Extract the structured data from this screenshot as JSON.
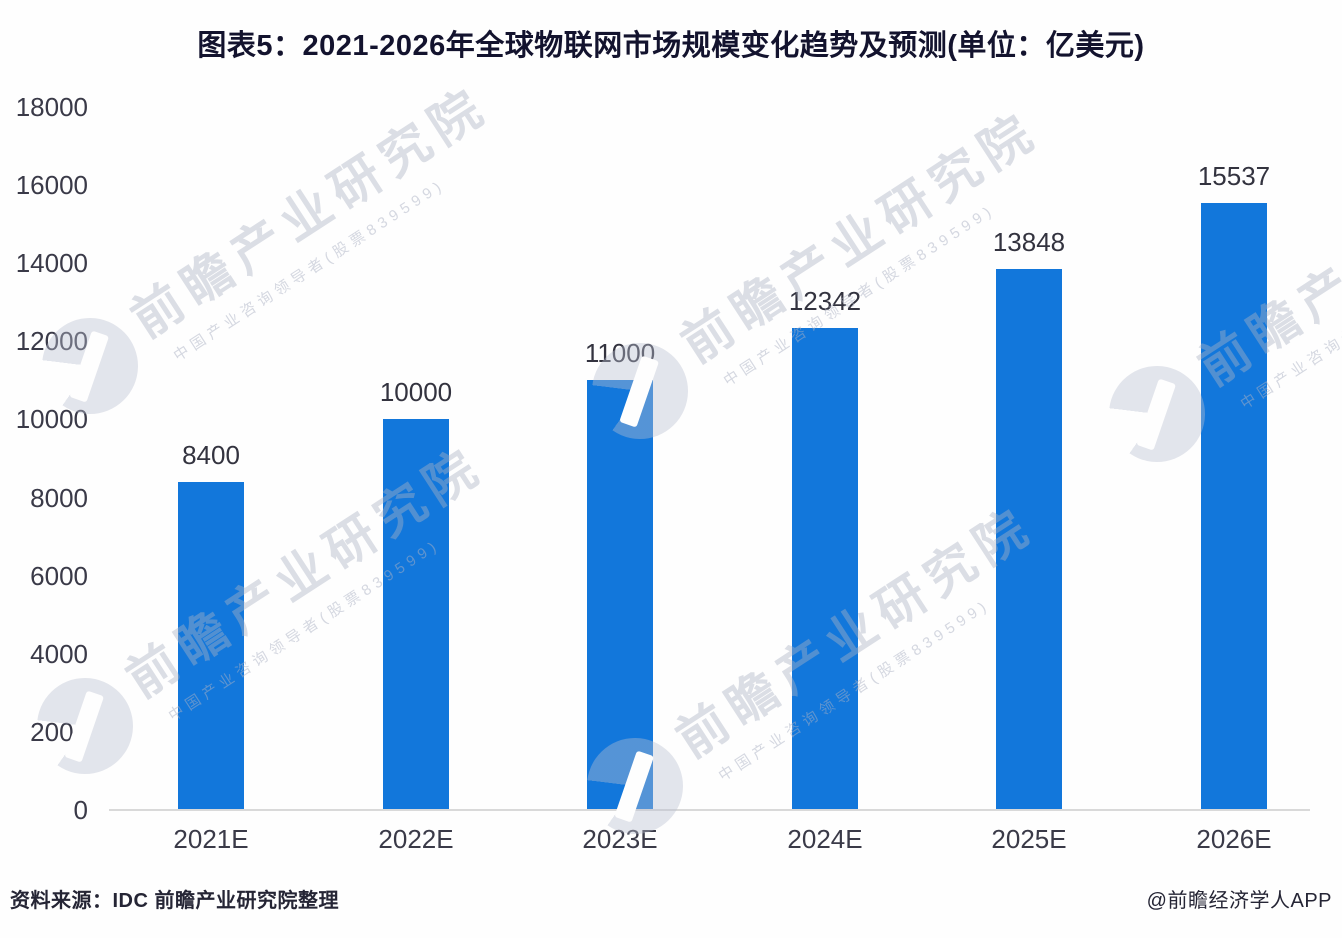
{
  "title": "图表5：2021-2026年全球物联网市场规模变化趋势及预测(单位：亿美元)",
  "chart_data": {
    "type": "bar",
    "title": "图表5：2021-2026年全球物联网市场规模变化趋势及预测(单位：亿美元)",
    "categories": [
      "2021E",
      "2022E",
      "2023E",
      "2024E",
      "2025E",
      "2026E"
    ],
    "values": [
      8400,
      10000,
      11000,
      12342,
      13848,
      15537
    ],
    "xlabel": "",
    "ylabel": "",
    "ylim": [
      0,
      18000
    ],
    "yticks": [
      0,
      2000,
      4000,
      6000,
      8000,
      10000,
      12000,
      14000,
      16000,
      18000
    ],
    "grid": false,
    "legend": "none",
    "value_labels": true,
    "bar_color": "#1277db"
  },
  "watermark": {
    "text": "前瞻产业研究院",
    "subtext": "中国产业咨询领导者(股票839599)"
  },
  "footer": {
    "source": "资料来源：IDC 前瞻产业研究院整理",
    "credit": "@前瞻经济学人APP"
  },
  "colors": {
    "bar": "#1277db",
    "axis_line": "#d9d9d9",
    "tick_text": "#3a3a48",
    "value_text": "#33333f",
    "title_text": "#13132e",
    "watermark": "#dfe2ec",
    "background": "#fefefe"
  }
}
